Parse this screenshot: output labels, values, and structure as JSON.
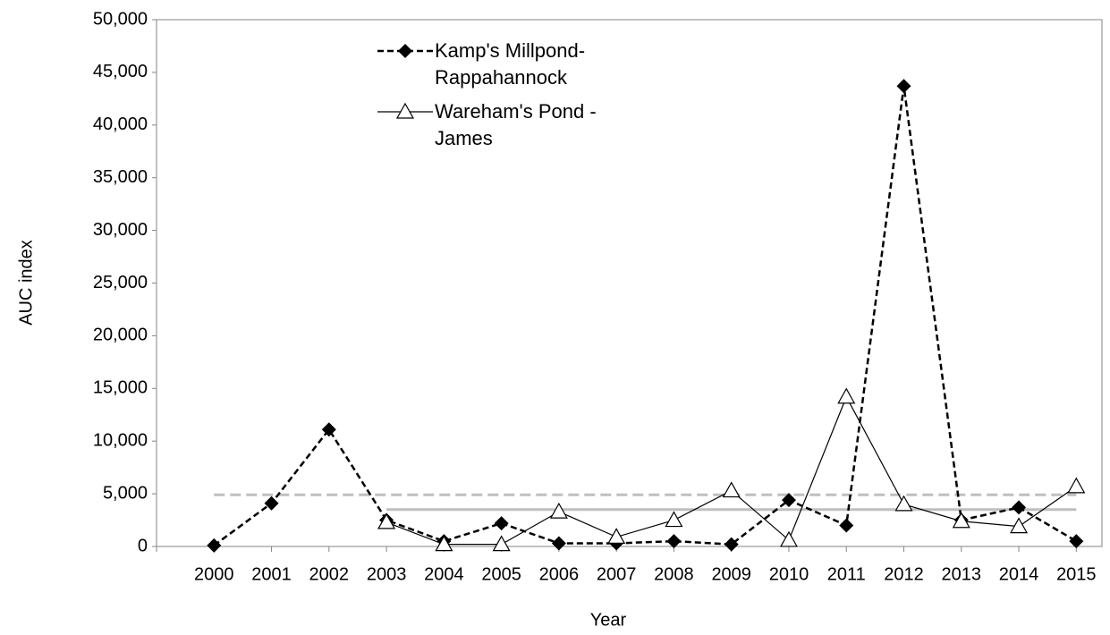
{
  "chart_data": {
    "type": "line",
    "x_label": "Year",
    "y_label": "AUC index",
    "categories": [
      null,
      "2000",
      "2001",
      "2002",
      "2003",
      "2004",
      "2005",
      "2006",
      "2007",
      "2008",
      "2009",
      "2010",
      "2011",
      "2012",
      "2013",
      "2014",
      "2015"
    ],
    "series": [
      {
        "name": "Kamp's Millpond-Rappahannock",
        "color": "#000000",
        "dash": true,
        "marker": "diamond",
        "values": [
          null,
          100,
          4100,
          11100,
          2500,
          500,
          2200,
          300,
          300,
          500,
          200,
          4400,
          2000,
          43700,
          2500,
          3700,
          500
        ]
      },
      {
        "name": "Wareham's Pond - James",
        "color": "#000000",
        "dash": false,
        "marker": "triangle",
        "values": [
          null,
          null,
          null,
          null,
          2300,
          200,
          200,
          3300,
          900,
          2500,
          5300,
          600,
          14200,
          4000,
          2400,
          1900,
          5700
        ]
      }
    ],
    "reference_lines": [
      {
        "value": 4900,
        "x": [
          "2000",
          "2015"
        ],
        "color": "#bfbfbf",
        "dash": true
      },
      {
        "value": 3500,
        "x": [
          "2003",
          "2015"
        ],
        "color": "#bfbfbf",
        "dash": false
      }
    ],
    "ylim": [
      0,
      50000
    ],
    "yticks": [
      0,
      {
        "value": 5000,
        "label": "5,000"
      },
      {
        "value": 10000,
        "label": "10,000"
      },
      {
        "value": 15000,
        "label": "15,000"
      },
      {
        "value": 20000,
        "label": "20,000"
      },
      {
        "value": 25000,
        "label": "25,000"
      },
      {
        "value": 30000,
        "label": "30,000"
      },
      {
        "value": 35000,
        "label": "35,000"
      },
      {
        "value": 40000,
        "label": "40,000"
      },
      {
        "value": 45000,
        "label": "45,000"
      },
      {
        "value": 50000,
        "label": "50,000"
      }
    ],
    "grid": false,
    "legend": "top-center"
  }
}
